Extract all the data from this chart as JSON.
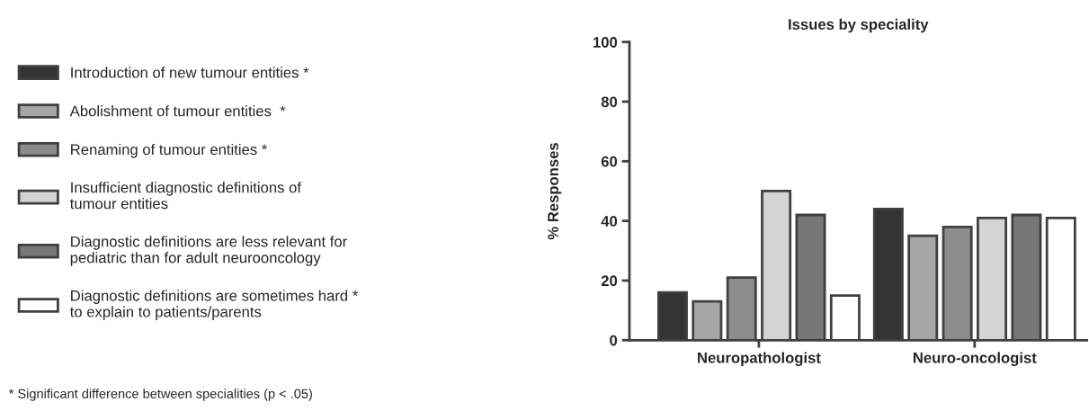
{
  "chart_data": {
    "type": "bar",
    "title": "Issues by speciality",
    "ylabel": "% Responses",
    "categories": [
      "Neuropathologist",
      "Neuro-oncologist"
    ],
    "series": [
      {
        "name": "Introduction of new tumour entities *",
        "color": "#333333",
        "values": [
          16,
          44
        ]
      },
      {
        "name": "Abolishment of tumour entities  *",
        "color": "#a6a6a6",
        "values": [
          13,
          35
        ]
      },
      {
        "name": "Renaming of tumour entities *",
        "color": "#8c8c8c",
        "values": [
          21,
          38
        ]
      },
      {
        "name": "Insufficient diagnostic definitions of\ntumour entities",
        "color": "#d4d4d4",
        "values": [
          50,
          41
        ]
      },
      {
        "name": "Diagnostic definitions are less relevant for\npediatric than for adult neurooncology",
        "color": "#777777",
        "values": [
          42,
          42
        ]
      },
      {
        "name": "Diagnostic definitions are sometimes hard *\nto explain to patients/parents",
        "color": "#ffffff",
        "values": [
          15,
          41
        ]
      }
    ],
    "ylim": [
      0,
      100
    ],
    "yticks": [
      0,
      20,
      40,
      60,
      80,
      100
    ],
    "grid": false,
    "legend": "left",
    "annotations": [
      "* Significant difference between specialities (p < .05)"
    ]
  }
}
